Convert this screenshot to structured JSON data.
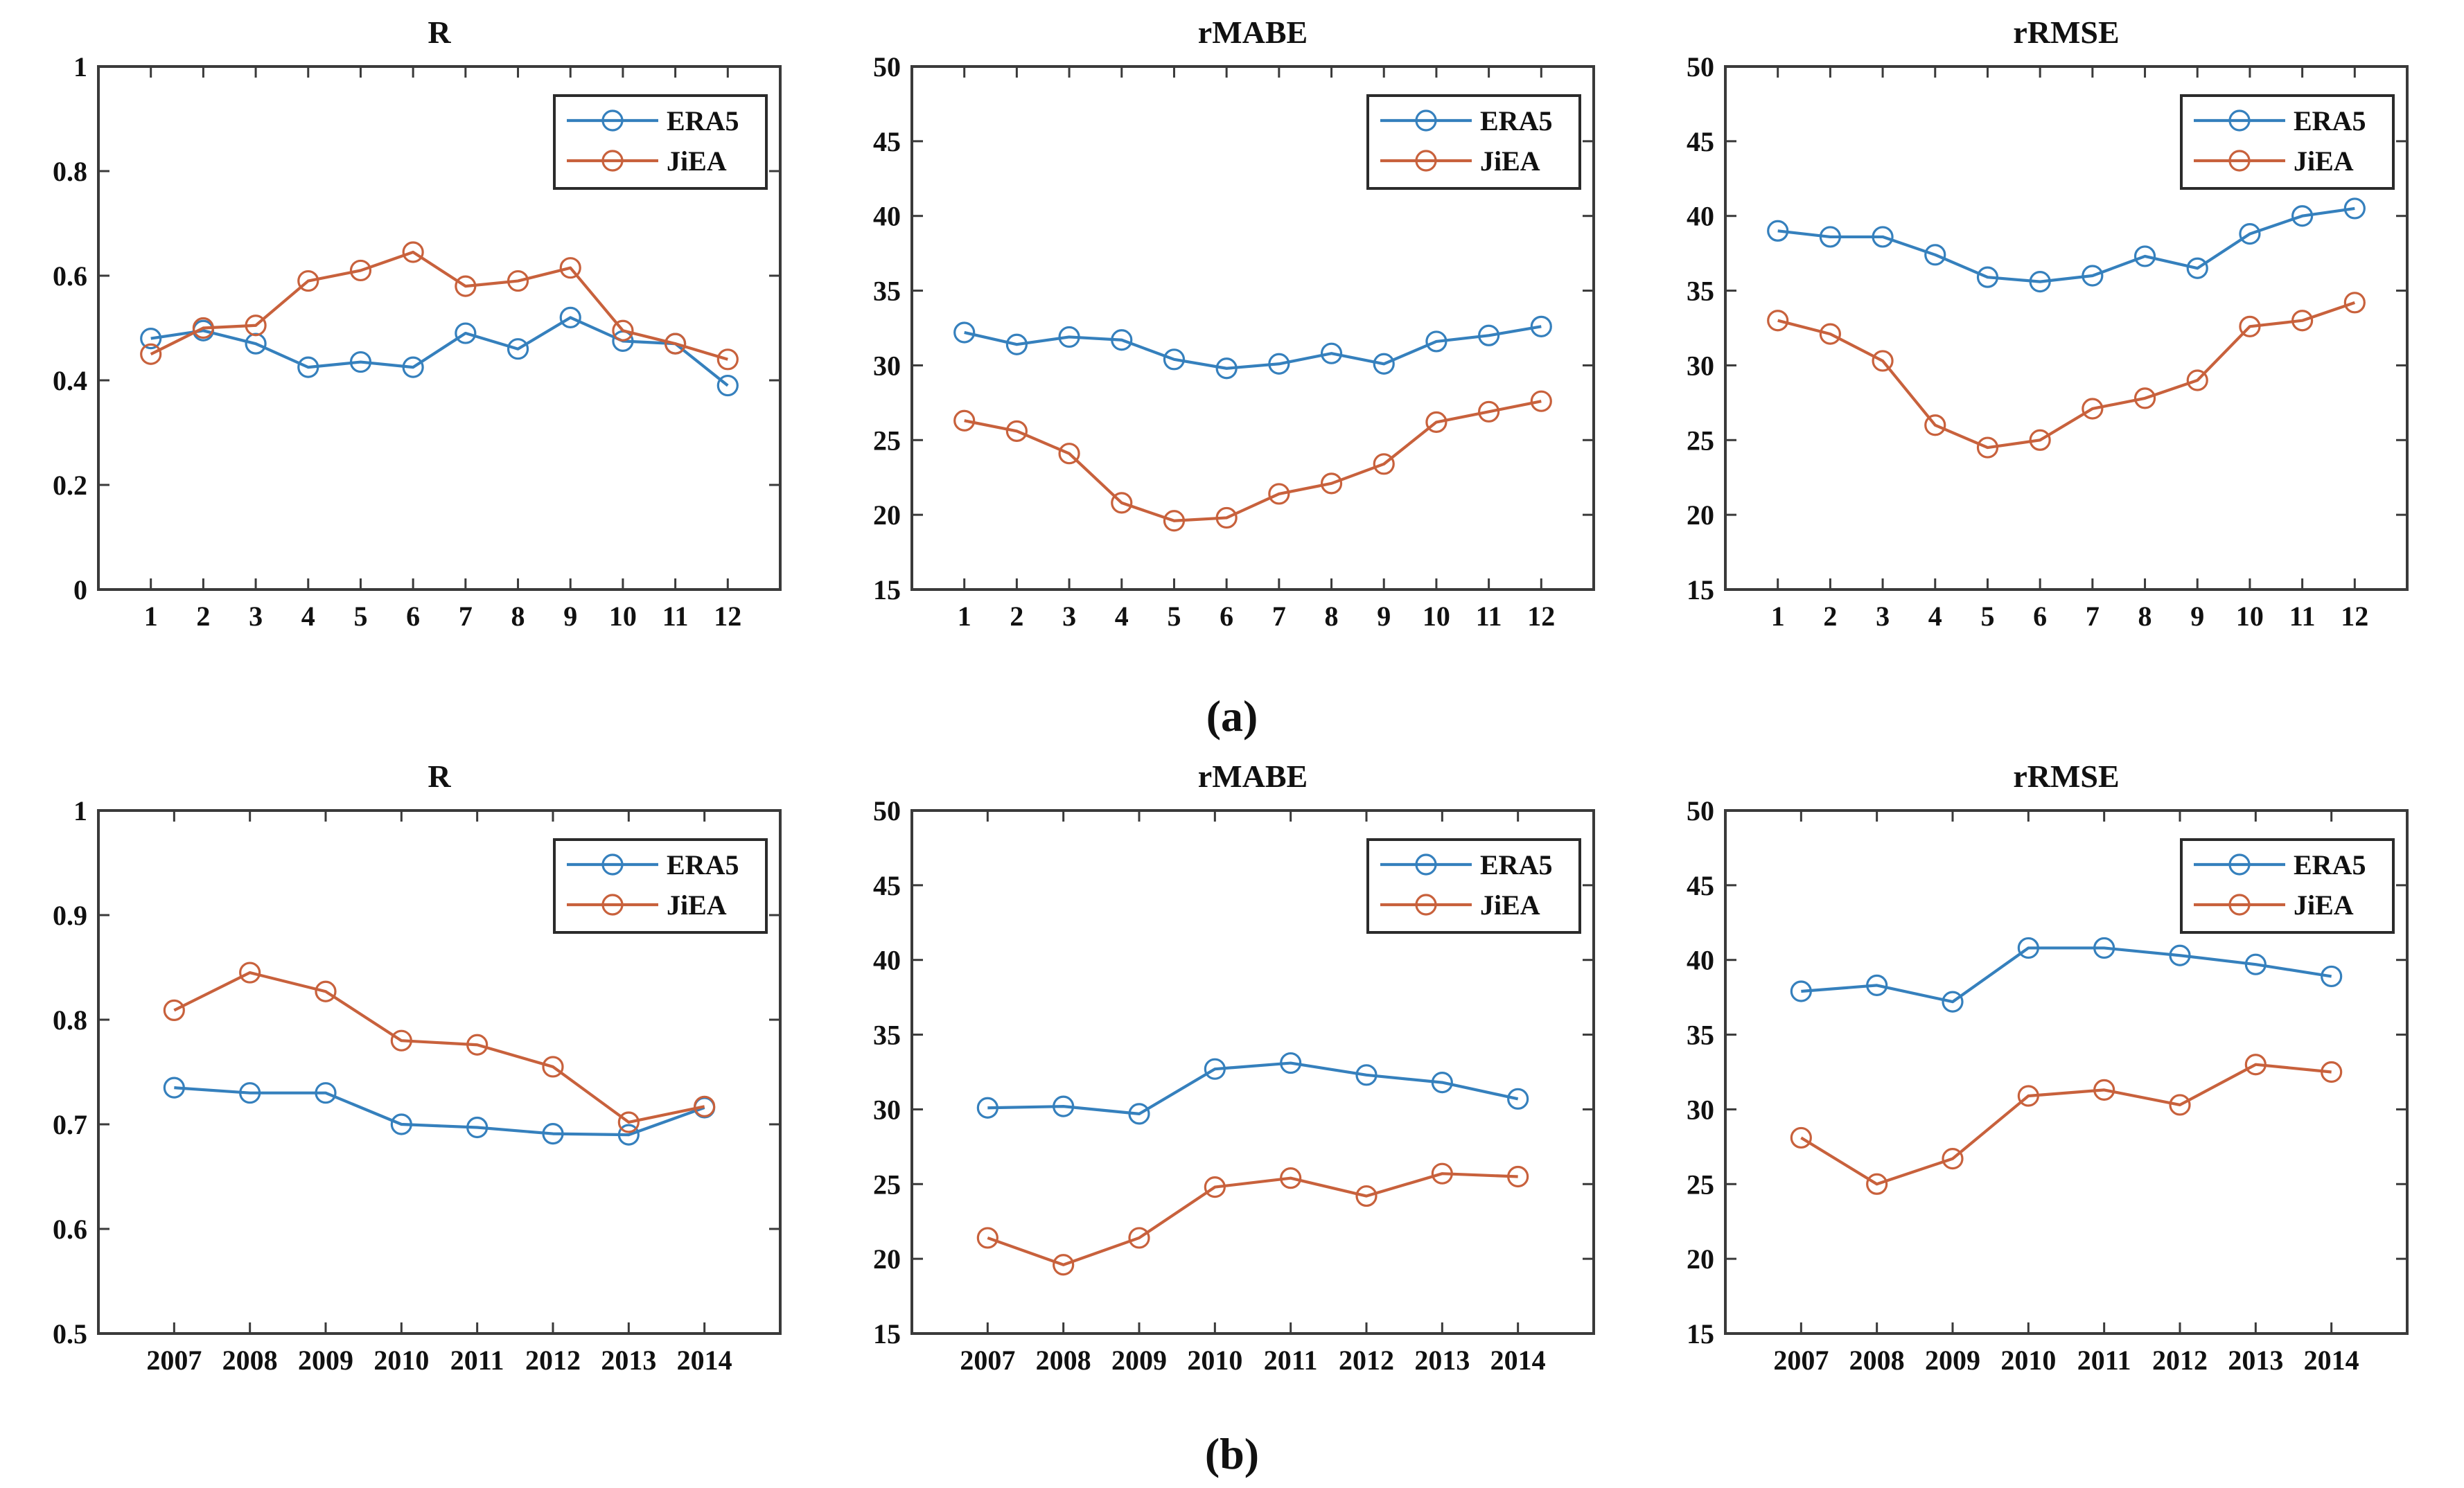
{
  "figure": {
    "row_labels": {
      "a": "(a)",
      "b": "(b)"
    },
    "legend_entries": [
      "ERA5",
      "JiEA"
    ],
    "colors": {
      "era5": "#3580BD",
      "jiea": "#C8613C",
      "axis": "#3a3a3a",
      "text": "#111111",
      "legend_border": "#2b2b2b",
      "background": "#ffffff"
    }
  },
  "chart_data": [
    {
      "id": "r-monthly",
      "panel": "a",
      "type": "line",
      "title": "R",
      "x": [
        1,
        2,
        3,
        4,
        5,
        6,
        7,
        8,
        9,
        10,
        11,
        12
      ],
      "categories": [
        "1",
        "2",
        "3",
        "4",
        "5",
        "6",
        "7",
        "8",
        "9",
        "10",
        "11",
        "12"
      ],
      "xlim": [
        0,
        13
      ],
      "ylim": [
        0,
        1
      ],
      "yticks": [
        0,
        0.2,
        0.4,
        0.6,
        0.8,
        1
      ],
      "ytick_labels": [
        "0",
        "0.2",
        "0.4",
        "0.6",
        "0.8",
        "1"
      ],
      "grid": false,
      "legend_position": "top-right",
      "series": [
        {
          "name": "ERA5",
          "color_key": "era5",
          "values": [
            0.48,
            0.495,
            0.47,
            0.425,
            0.435,
            0.425,
            0.49,
            0.46,
            0.52,
            0.475,
            0.47,
            0.39
          ]
        },
        {
          "name": "JiEA",
          "color_key": "jiea",
          "values": [
            0.45,
            0.5,
            0.505,
            0.59,
            0.61,
            0.645,
            0.58,
            0.59,
            0.615,
            0.495,
            0.47,
            0.44
          ]
        }
      ]
    },
    {
      "id": "rmabe-monthly",
      "panel": "a",
      "type": "line",
      "title": "rMABE",
      "x": [
        1,
        2,
        3,
        4,
        5,
        6,
        7,
        8,
        9,
        10,
        11,
        12
      ],
      "categories": [
        "1",
        "2",
        "3",
        "4",
        "5",
        "6",
        "7",
        "8",
        "9",
        "10",
        "11",
        "12"
      ],
      "xlim": [
        0,
        13
      ],
      "ylim": [
        15,
        50
      ],
      "yticks": [
        15,
        20,
        25,
        30,
        35,
        40,
        45,
        50
      ],
      "ytick_labels": [
        "15",
        "20",
        "25",
        "30",
        "35",
        "40",
        "45",
        "50"
      ],
      "grid": false,
      "legend_position": "top-right",
      "series": [
        {
          "name": "ERA5",
          "color_key": "era5",
          "values": [
            32.2,
            31.4,
            31.9,
            31.7,
            30.4,
            29.8,
            30.1,
            30.8,
            30.1,
            31.6,
            32.0,
            32.6
          ]
        },
        {
          "name": "JiEA",
          "color_key": "jiea",
          "values": [
            26.3,
            25.6,
            24.1,
            20.8,
            19.6,
            19.8,
            21.4,
            22.1,
            23.4,
            26.2,
            26.9,
            27.6
          ]
        }
      ]
    },
    {
      "id": "rrmse-monthly",
      "panel": "a",
      "type": "line",
      "title": "rRMSE",
      "x": [
        1,
        2,
        3,
        4,
        5,
        6,
        7,
        8,
        9,
        10,
        11,
        12
      ],
      "categories": [
        "1",
        "2",
        "3",
        "4",
        "5",
        "6",
        "7",
        "8",
        "9",
        "10",
        "11",
        "12"
      ],
      "xlim": [
        0,
        13
      ],
      "ylim": [
        15,
        50
      ],
      "yticks": [
        15,
        20,
        25,
        30,
        35,
        40,
        45,
        50
      ],
      "ytick_labels": [
        "15",
        "20",
        "25",
        "30",
        "35",
        "40",
        "45",
        "50"
      ],
      "grid": false,
      "legend_position": "top-right",
      "series": [
        {
          "name": "ERA5",
          "color_key": "era5",
          "values": [
            39.0,
            38.6,
            38.6,
            37.4,
            35.9,
            35.6,
            36.0,
            37.3,
            36.5,
            38.8,
            40.0,
            40.5
          ]
        },
        {
          "name": "JiEA",
          "color_key": "jiea",
          "values": [
            33.0,
            32.1,
            30.3,
            26.0,
            24.5,
            25.0,
            27.1,
            27.8,
            29.0,
            32.6,
            33.0,
            34.2
          ]
        }
      ]
    },
    {
      "id": "r-yearly",
      "panel": "b",
      "type": "line",
      "title": "R",
      "x": [
        2007,
        2008,
        2009,
        2010,
        2011,
        2012,
        2013,
        2014
      ],
      "categories": [
        "2007",
        "2008",
        "2009",
        "2010",
        "2011",
        "2012",
        "2013",
        "2014"
      ],
      "xlim": [
        2006,
        2015
      ],
      "ylim": [
        0.5,
        1
      ],
      "yticks": [
        0.5,
        0.6,
        0.7,
        0.8,
        0.9,
        1
      ],
      "ytick_labels": [
        "0.5",
        "0.6",
        "0.7",
        "0.8",
        "0.9",
        "1"
      ],
      "grid": false,
      "legend_position": "top-right",
      "series": [
        {
          "name": "ERA5",
          "color_key": "era5",
          "values": [
            0.735,
            0.73,
            0.73,
            0.7,
            0.697,
            0.691,
            0.69,
            0.716
          ]
        },
        {
          "name": "JiEA",
          "color_key": "jiea",
          "values": [
            0.809,
            0.845,
            0.827,
            0.78,
            0.776,
            0.755,
            0.702,
            0.717
          ]
        }
      ]
    },
    {
      "id": "rmabe-yearly",
      "panel": "b",
      "type": "line",
      "title": "rMABE",
      "x": [
        2007,
        2008,
        2009,
        2010,
        2011,
        2012,
        2013,
        2014
      ],
      "categories": [
        "2007",
        "2008",
        "2009",
        "2010",
        "2011",
        "2012",
        "2013",
        "2014"
      ],
      "xlim": [
        2006,
        2015
      ],
      "ylim": [
        15,
        50
      ],
      "yticks": [
        15,
        20,
        25,
        30,
        35,
        40,
        45,
        50
      ],
      "ytick_labels": [
        "15",
        "20",
        "25",
        "30",
        "35",
        "40",
        "45",
        "50"
      ],
      "grid": false,
      "legend_position": "top-right",
      "series": [
        {
          "name": "ERA5",
          "color_key": "era5",
          "values": [
            30.1,
            30.2,
            29.7,
            32.7,
            33.1,
            32.3,
            31.8,
            30.7
          ]
        },
        {
          "name": "JiEA",
          "color_key": "jiea",
          "values": [
            21.4,
            19.6,
            21.4,
            24.8,
            25.4,
            24.2,
            25.7,
            25.5
          ]
        }
      ]
    },
    {
      "id": "rrmse-yearly",
      "panel": "b",
      "type": "line",
      "title": "rRMSE",
      "x": [
        2007,
        2008,
        2009,
        2010,
        2011,
        2012,
        2013,
        2014
      ],
      "categories": [
        "2007",
        "2008",
        "2009",
        "2010",
        "2011",
        "2012",
        "2013",
        "2014"
      ],
      "xlim": [
        2006,
        2015
      ],
      "ylim": [
        15,
        50
      ],
      "yticks": [
        15,
        20,
        25,
        30,
        35,
        40,
        45,
        50
      ],
      "ytick_labels": [
        "15",
        "20",
        "25",
        "30",
        "35",
        "40",
        "45",
        "50"
      ],
      "grid": false,
      "legend_position": "top-right",
      "series": [
        {
          "name": "ERA5",
          "color_key": "era5",
          "values": [
            37.9,
            38.3,
            37.2,
            40.8,
            40.8,
            40.3,
            39.7,
            38.9
          ]
        },
        {
          "name": "JiEA",
          "color_key": "jiea",
          "values": [
            28.1,
            25.0,
            26.7,
            30.9,
            31.3,
            30.3,
            33.0,
            32.5
          ]
        }
      ]
    }
  ]
}
